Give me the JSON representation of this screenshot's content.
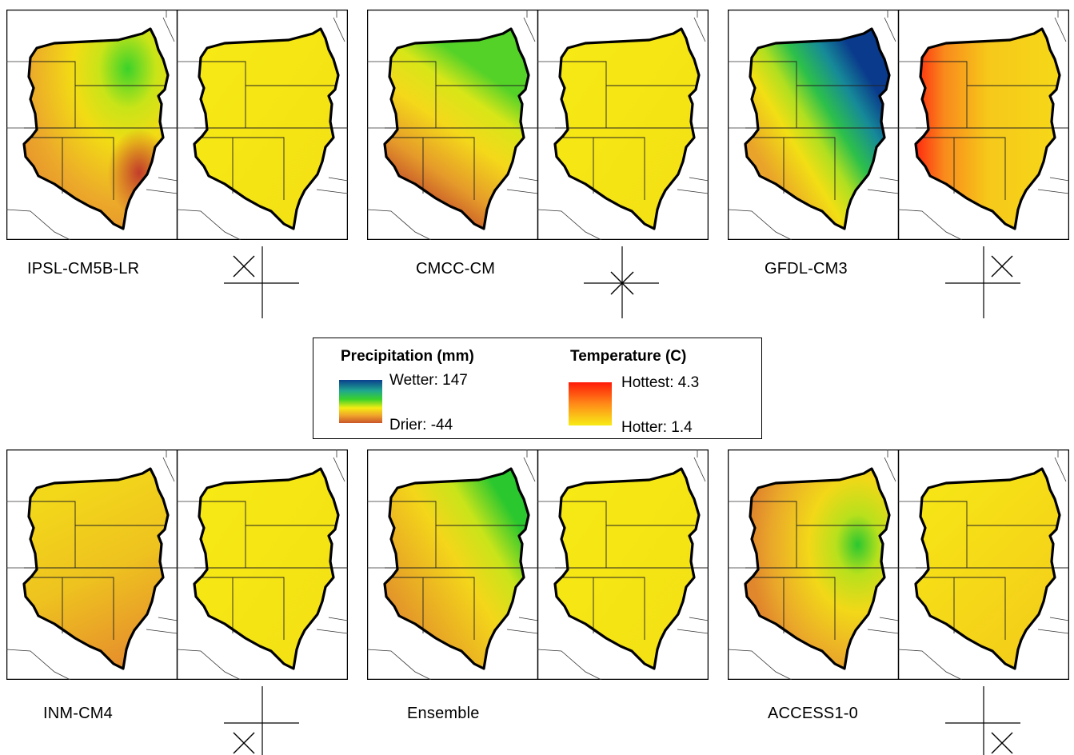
{
  "panels": [
    {
      "model": "IPSL-CM5B-LR",
      "precip_style": "p1",
      "temp_style": "t1",
      "glyph": "upper-left-x"
    },
    {
      "model": "CMCC-CM",
      "precip_style": "p2",
      "temp_style": "t1",
      "glyph": "center-asterisk"
    },
    {
      "model": "GFDL-CM3",
      "precip_style": "p3",
      "temp_style": "t3",
      "glyph": "upper-right-x"
    },
    {
      "model": "INM-CM4",
      "precip_style": "p4",
      "temp_style": "t1",
      "glyph": "lower-left-x"
    },
    {
      "model": "Ensemble",
      "precip_style": "p5",
      "temp_style": "t1",
      "glyph": "none"
    },
    {
      "model": "ACCESS1-0",
      "precip_style": "p6",
      "temp_style": "t6",
      "glyph": "lower-right-x"
    }
  ],
  "legend": {
    "precip_title": "Precipitation (mm)",
    "precip_high": "Wetter: 147",
    "precip_low": "Drier: -44",
    "temp_title": "Temperature (C)",
    "temp_high": "Hottest: 4.3",
    "temp_low": "Hotter: 1.4",
    "precip_colors": [
      "#0a3f8e",
      "#1fa78f",
      "#3bd22a",
      "#f5ec12",
      "#f0a52a",
      "#c9552a"
    ],
    "temp_colors": [
      "#ff1a08",
      "#ff8a18",
      "#f8ec16"
    ]
  }
}
